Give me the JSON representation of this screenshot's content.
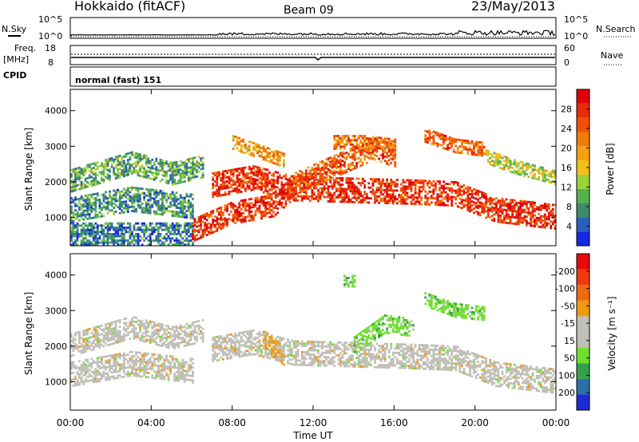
{
  "header": {
    "station": "Hokkaido (fitACF)",
    "beam": "Beam 09",
    "date": "23/May/2013"
  },
  "nsky_panel": {
    "left_label": "N.Sky",
    "right_label": "N.Search",
    "left_ticks": [
      "10^5",
      "10^0"
    ],
    "right_ticks": [
      "10^5",
      "10^0"
    ]
  },
  "freq_panel": {
    "left_label_1": "Freq.",
    "left_label_2": "[MHz]",
    "left_ticks": [
      "18",
      "8"
    ],
    "right_label": "Nave",
    "right_ticks": [
      "60",
      "0"
    ]
  },
  "cpid_panel": {
    "label": "CPID",
    "mode_text": "normal (fast) 151"
  },
  "chart_data": [
    {
      "type": "heatmap",
      "name_for_reference": "power",
      "ylabel": "Slant Range [km]",
      "ytick_labels": [
        "1000",
        "2000",
        "3000",
        "4000"
      ],
      "ylim": [
        200,
        4600
      ],
      "xlim": [
        0,
        24
      ],
      "colorbar": {
        "label": "Power [dB]",
        "tick_labels": [
          "4",
          "8",
          "12",
          "16",
          "20",
          "24",
          "28"
        ],
        "colors": [
          "#1428e6",
          "#2a5fc0",
          "#3f8a6a",
          "#56b04e",
          "#9ed23c",
          "#f2c016",
          "#f5a010",
          "#f07a0a",
          "#f0500a",
          "#e82a0a",
          "#e0000a"
        ]
      },
      "bands": [
        {
          "t": [
            0,
            3,
            5,
            6.5
          ],
          "r": [
            2000,
            2500,
            2200,
            2400
          ],
          "w": 300,
          "level": 0.3
        },
        {
          "t": [
            0,
            3,
            6
          ],
          "r": [
            1200,
            1500,
            1300
          ],
          "w": 350,
          "level": 0.25
        },
        {
          "t": [
            0,
            6
          ],
          "r": [
            500,
            500
          ],
          "w": 300,
          "level": 0.2
        },
        {
          "t": [
            6,
            8,
            10,
            11
          ],
          "r": [
            600,
            1100,
            1300,
            1800
          ],
          "w": 300,
          "level": 0.85
        },
        {
          "t": [
            7,
            9,
            11,
            14,
            17,
            19,
            21,
            24
          ],
          "r": [
            1900,
            2100,
            1800,
            1750,
            1700,
            1650,
            1200,
            1000
          ],
          "w": 350,
          "level": 0.85
        },
        {
          "t": [
            11,
            13,
            15,
            16
          ],
          "r": [
            1900,
            2400,
            2900,
            2700
          ],
          "w": 300,
          "level": 0.75
        },
        {
          "t": [
            13,
            14.5,
            16
          ],
          "r": [
            3100,
            3100,
            3000
          ],
          "w": 200,
          "level": 0.7
        },
        {
          "t": [
            8,
            9.5,
            10.5
          ],
          "r": [
            3100,
            2800,
            2600
          ],
          "w": 200,
          "level": 0.6
        },
        {
          "t": [
            17.5,
            19,
            20.5
          ],
          "r": [
            3300,
            3000,
            2900
          ],
          "w": 200,
          "level": 0.75
        },
        {
          "t": [
            20.5,
            22,
            24
          ],
          "r": [
            2700,
            2400,
            2100
          ],
          "w": 200,
          "level": 0.45
        }
      ]
    },
    {
      "type": "heatmap",
      "name_for_reference": "velocity",
      "ylabel": "Slant Range [km]",
      "ytick_labels": [
        "1000",
        "2000",
        "3000",
        "4000"
      ],
      "ylim": [
        200,
        4600
      ],
      "xlim": [
        0,
        24
      ],
      "xtick_labels": [
        "00:00",
        "04:00",
        "08:00",
        "12:00",
        "16:00",
        "20:00",
        "00:00"
      ],
      "xlabel": "Time UT",
      "colorbar": {
        "label": "Velocity [m s⁻¹]",
        "tick_labels": [
          "200",
          "100",
          "50",
          "15",
          "-15",
          "-50",
          "-100",
          "-200"
        ],
        "colors": [
          "#1e2ad8",
          "#2a70a8",
          "#35a04a",
          "#70e030",
          "#c0c0b8",
          "#c0c0b8",
          "#f09a10",
          "#f06a10",
          "#f03a10",
          "#e80a0a"
        ]
      },
      "bands": [
        {
          "t": [
            0,
            3,
            5,
            6.5
          ],
          "r": [
            2000,
            2500,
            2200,
            2400
          ],
          "w": 300,
          "cat": "gray"
        },
        {
          "t": [
            0,
            3,
            6
          ],
          "r": [
            1200,
            1500,
            1300
          ],
          "w": 350,
          "cat": "gray"
        },
        {
          "t": [
            7,
            9,
            11,
            14,
            17,
            19,
            21,
            24
          ],
          "r": [
            1900,
            2100,
            1800,
            1750,
            1700,
            1650,
            1200,
            1000
          ],
          "w": 350,
          "cat": "gray"
        },
        {
          "t": [
            9.5,
            10.5
          ],
          "r": [
            2200,
            1700
          ],
          "w": 250,
          "cat": "orange"
        },
        {
          "t": [
            14,
            15.5,
            17
          ],
          "r": [
            2000,
            2600,
            2500
          ],
          "w": 250,
          "cat": "green"
        },
        {
          "t": [
            17.5,
            19,
            20.5
          ],
          "r": [
            3300,
            3000,
            2900
          ],
          "w": 200,
          "cat": "green"
        },
        {
          "t": [
            13.5,
            14
          ],
          "r": [
            3800,
            3800
          ],
          "w": 150,
          "cat": "green"
        }
      ]
    }
  ]
}
